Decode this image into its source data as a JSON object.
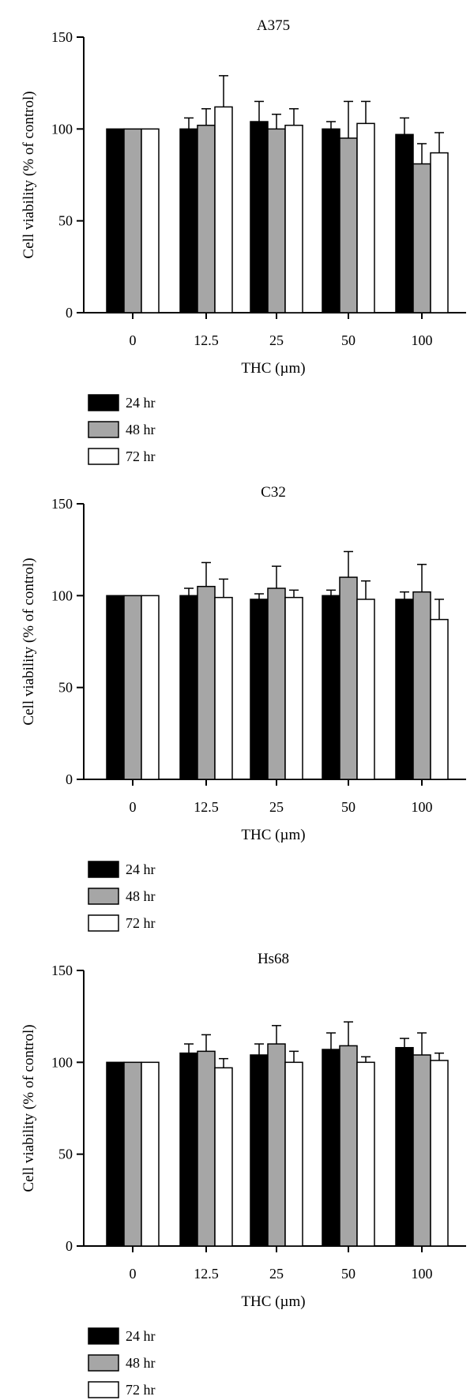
{
  "colors": {
    "series_fills": [
      "#000000",
      "#a6a6a6",
      "#ffffff"
    ],
    "stroke": "#000000"
  },
  "chart_data": [
    {
      "type": "bar",
      "title": "A375",
      "xlabel": "THC (µm)",
      "ylabel": "Cell viability (% of control)",
      "ylim": [
        0,
        150
      ],
      "yticks": [
        0,
        50,
        100,
        150
      ],
      "categories": [
        "0",
        "12.5",
        "25",
        "50",
        "100"
      ],
      "legend_position": "bottom-left",
      "series": [
        {
          "name": "24 hr",
          "values": [
            100,
            100,
            104,
            100,
            97
          ],
          "errors": [
            0,
            6,
            11,
            4,
            9
          ]
        },
        {
          "name": "48 hr",
          "values": [
            100,
            102,
            100,
            95,
            81
          ],
          "errors": [
            0,
            9,
            8,
            20,
            11
          ]
        },
        {
          "name": "72 hr",
          "values": [
            100,
            112,
            102,
            103,
            87
          ],
          "errors": [
            0,
            17,
            9,
            12,
            11
          ]
        }
      ]
    },
    {
      "type": "bar",
      "title": "C32",
      "xlabel": "THC (µm)",
      "ylabel": "Cell viability (% of control)",
      "ylim": [
        0,
        150
      ],
      "yticks": [
        0,
        50,
        100,
        150
      ],
      "categories": [
        "0",
        "12.5",
        "25",
        "50",
        "100"
      ],
      "legend_position": "bottom-left",
      "series": [
        {
          "name": "24 hr",
          "values": [
            100,
            100,
            98,
            100,
            98
          ],
          "errors": [
            0,
            4,
            3,
            3,
            4
          ]
        },
        {
          "name": "48 hr",
          "values": [
            100,
            105,
            104,
            110,
            102
          ],
          "errors": [
            0,
            13,
            12,
            14,
            15
          ]
        },
        {
          "name": "72 hr",
          "values": [
            100,
            99,
            99,
            98,
            87
          ],
          "errors": [
            0,
            10,
            4,
            10,
            11
          ]
        }
      ]
    },
    {
      "type": "bar",
      "title": "Hs68",
      "xlabel": "THC (µm)",
      "ylabel": "Cell viability (% of control)",
      "ylim": [
        0,
        150
      ],
      "yticks": [
        0,
        50,
        100,
        150
      ],
      "categories": [
        "0",
        "12.5",
        "25",
        "50",
        "100"
      ],
      "legend_position": "bottom-left",
      "series": [
        {
          "name": "24 hr",
          "values": [
            100,
            105,
            104,
            107,
            108
          ],
          "errors": [
            0,
            5,
            6,
            9,
            5
          ]
        },
        {
          "name": "48 hr",
          "values": [
            100,
            106,
            110,
            109,
            104
          ],
          "errors": [
            0,
            9,
            10,
            13,
            12
          ]
        },
        {
          "name": "72 hr",
          "values": [
            100,
            97,
            100,
            100,
            101
          ],
          "errors": [
            0,
            5,
            6,
            3,
            4
          ]
        }
      ]
    }
  ]
}
